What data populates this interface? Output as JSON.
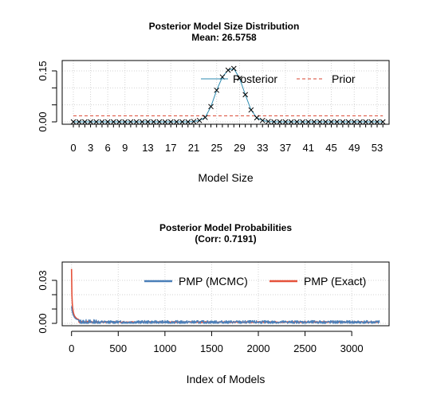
{
  "chart_data": [
    {
      "type": "line",
      "title": "Posterior Model Size Distribution",
      "subtitle": "Mean: 26.5758",
      "xlabel": "Model Size",
      "ylabel": "",
      "xlim": [
        0,
        54
      ],
      "ylim": [
        0,
        0.15
      ],
      "x_ticks": [
        0,
        3,
        6,
        9,
        13,
        17,
        21,
        25,
        29,
        33,
        37,
        41,
        45,
        49,
        53
      ],
      "y_ticks": [
        "0.00",
        "0.15"
      ],
      "grid": true,
      "legend_position": "top-right",
      "x": [
        0,
        1,
        2,
        3,
        4,
        5,
        6,
        7,
        8,
        9,
        10,
        11,
        12,
        13,
        14,
        15,
        16,
        17,
        18,
        19,
        20,
        21,
        22,
        23,
        24,
        25,
        26,
        27,
        28,
        29,
        30,
        31,
        32,
        33,
        34,
        35,
        36,
        37,
        38,
        39,
        40,
        41,
        42,
        43,
        44,
        45,
        46,
        47,
        48,
        49,
        50,
        51,
        52,
        53,
        54
      ],
      "series": [
        {
          "name": "Posterior",
          "color": "#2e8bb0",
          "marker": "x",
          "values": [
            0,
            0,
            0,
            0,
            0,
            0,
            0,
            0,
            0,
            0,
            0,
            0,
            0,
            0,
            0,
            0,
            0,
            0,
            0,
            0,
            0,
            0.001,
            0.004,
            0.013,
            0.045,
            0.093,
            0.132,
            0.152,
            0.157,
            0.128,
            0.08,
            0.035,
            0.012,
            0.004,
            0.001,
            0,
            0,
            0,
            0,
            0,
            0,
            0,
            0,
            0,
            0,
            0,
            0,
            0,
            0,
            0,
            0,
            0,
            0,
            0,
            0
          ]
        },
        {
          "name": "Prior",
          "color": "#d9432f",
          "line_style": "dashed",
          "values": [
            0.018,
            0.018,
            0.018,
            0.018,
            0.018,
            0.018,
            0.018,
            0.018,
            0.018,
            0.018,
            0.018,
            0.018,
            0.018,
            0.018,
            0.018,
            0.018,
            0.018,
            0.018,
            0.018,
            0.018,
            0.018,
            0.018,
            0.018,
            0.018,
            0.018,
            0.018,
            0.018,
            0.018,
            0.018,
            0.018,
            0.018,
            0.018,
            0.018,
            0.018,
            0.018,
            0.018,
            0.018,
            0.018,
            0.018,
            0.018,
            0.018,
            0.018,
            0.018,
            0.018,
            0.018,
            0.018,
            0.018,
            0.018,
            0.018,
            0.018,
            0.018,
            0.018,
            0.018,
            0.018,
            0.018
          ]
        }
      ]
    },
    {
      "type": "line",
      "title": "Posterior Model Probabilities",
      "subtitle": "(Corr: 0.7191)",
      "xlabel": "Index of Models",
      "ylabel": "",
      "xlim": [
        -100,
        3400
      ],
      "ylim": [
        0,
        0.04
      ],
      "x_ticks": [
        0,
        500,
        1000,
        1500,
        2000,
        2500,
        3000
      ],
      "y_ticks": [
        "0.00",
        "0.03"
      ],
      "y_tick_values": [
        0,
        0.03
      ],
      "grid": true,
      "legend_position": "top-right",
      "n_models": 3300,
      "series": [
        {
          "name": "PMP (MCMC)",
          "color": "#4a7fb8",
          "head": [
            0.012,
            0.009,
            0.008,
            0.007,
            0.006,
            0.0055,
            0.005,
            0.0045,
            0.004,
            0.0038,
            0.0035,
            0.0033,
            0.003,
            0.0029,
            0.0028,
            0.0027,
            0.0026,
            0.0025,
            0.0024,
            0.0023
          ],
          "tail_level": 0.0008,
          "tail_noise": 0.0012
        },
        {
          "name": "PMP (Exact)",
          "color": "#e5523b",
          "head": [
            0.038,
            0.02,
            0.014,
            0.011,
            0.009,
            0.0075,
            0.0065,
            0.0058,
            0.0052,
            0.0048,
            0.0044,
            0.0041,
            0.0038,
            0.0036,
            0.0034,
            0.0032,
            0.003,
            0.0029,
            0.0028,
            0.0027
          ],
          "tail_level": 0.0009,
          "tail_noise": 0.0003
        }
      ]
    }
  ]
}
